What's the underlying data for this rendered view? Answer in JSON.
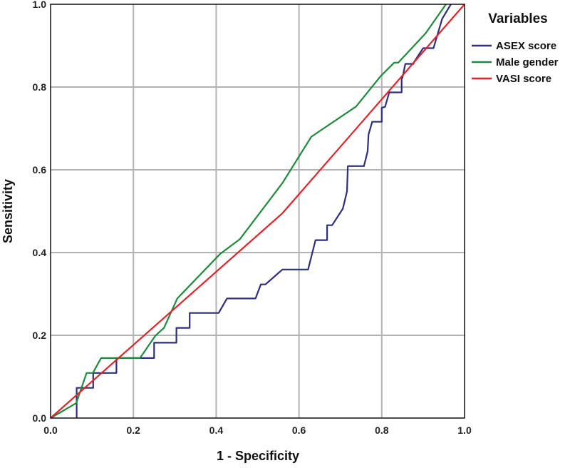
{
  "chart_data": {
    "type": "line",
    "title": "",
    "xlabel": "1 - Specificity",
    "ylabel": "Sensitivity",
    "xlim": [
      0,
      1
    ],
    "ylim": [
      0,
      1
    ],
    "xticks": [
      "0.0",
      "0.2",
      "0.4",
      "0.6",
      "0.8",
      "1.0"
    ],
    "yticks": [
      "0.0",
      "0.2",
      "0.4",
      "0.6",
      "0.8",
      "1.0"
    ],
    "grid": true,
    "legend": {
      "title": "Variables",
      "position": "right"
    },
    "series": [
      {
        "name": "ASEX score",
        "color": "#2e2e7e",
        "points": [
          [
            0.063,
            0.0
          ],
          [
            0.063,
            0.073
          ],
          [
            0.103,
            0.073
          ],
          [
            0.103,
            0.109
          ],
          [
            0.159,
            0.109
          ],
          [
            0.159,
            0.145
          ],
          [
            0.25,
            0.145
          ],
          [
            0.25,
            0.182
          ],
          [
            0.304,
            0.182
          ],
          [
            0.304,
            0.218
          ],
          [
            0.336,
            0.218
          ],
          [
            0.336,
            0.254
          ],
          [
            0.406,
            0.254
          ],
          [
            0.426,
            0.289
          ],
          [
            0.495,
            0.289
          ],
          [
            0.508,
            0.323
          ],
          [
            0.519,
            0.323
          ],
          [
            0.56,
            0.359
          ],
          [
            0.622,
            0.359
          ],
          [
            0.64,
            0.43
          ],
          [
            0.668,
            0.43
          ],
          [
            0.668,
            0.466
          ],
          [
            0.68,
            0.466
          ],
          [
            0.706,
            0.506
          ],
          [
            0.716,
            0.548
          ],
          [
            0.718,
            0.609
          ],
          [
            0.757,
            0.609
          ],
          [
            0.766,
            0.645
          ],
          [
            0.768,
            0.685
          ],
          [
            0.777,
            0.716
          ],
          [
            0.8,
            0.716
          ],
          [
            0.8,
            0.75
          ],
          [
            0.808,
            0.752
          ],
          [
            0.818,
            0.787
          ],
          [
            0.848,
            0.787
          ],
          [
            0.848,
            0.822
          ],
          [
            0.85,
            0.822
          ],
          [
            0.857,
            0.856
          ],
          [
            0.877,
            0.856
          ],
          [
            0.877,
            0.859
          ],
          [
            0.9,
            0.894
          ],
          [
            0.925,
            0.894
          ],
          [
            0.946,
            0.965
          ],
          [
            0.967,
            1.0
          ]
        ]
      },
      {
        "name": "Male gender",
        "color": "#1e8a3c",
        "points": [
          [
            0.0,
            0.0
          ],
          [
            0.062,
            0.036
          ],
          [
            0.087,
            0.109
          ],
          [
            0.102,
            0.109
          ],
          [
            0.122,
            0.145
          ],
          [
            0.216,
            0.145
          ],
          [
            0.253,
            0.199
          ],
          [
            0.274,
            0.218
          ],
          [
            0.306,
            0.289
          ],
          [
            0.41,
            0.397
          ],
          [
            0.457,
            0.432
          ],
          [
            0.56,
            0.568
          ],
          [
            0.63,
            0.68
          ],
          [
            0.738,
            0.753
          ],
          [
            0.797,
            0.826
          ],
          [
            0.83,
            0.859
          ],
          [
            0.84,
            0.859
          ],
          [
            0.906,
            0.93
          ],
          [
            0.955,
            1.0
          ]
        ]
      },
      {
        "name": "VASI score",
        "color": "#e0242a",
        "points": [
          [
            0.0,
            0.0
          ],
          [
            0.56,
            0.495
          ],
          [
            1.0,
            1.0
          ]
        ]
      }
    ]
  }
}
